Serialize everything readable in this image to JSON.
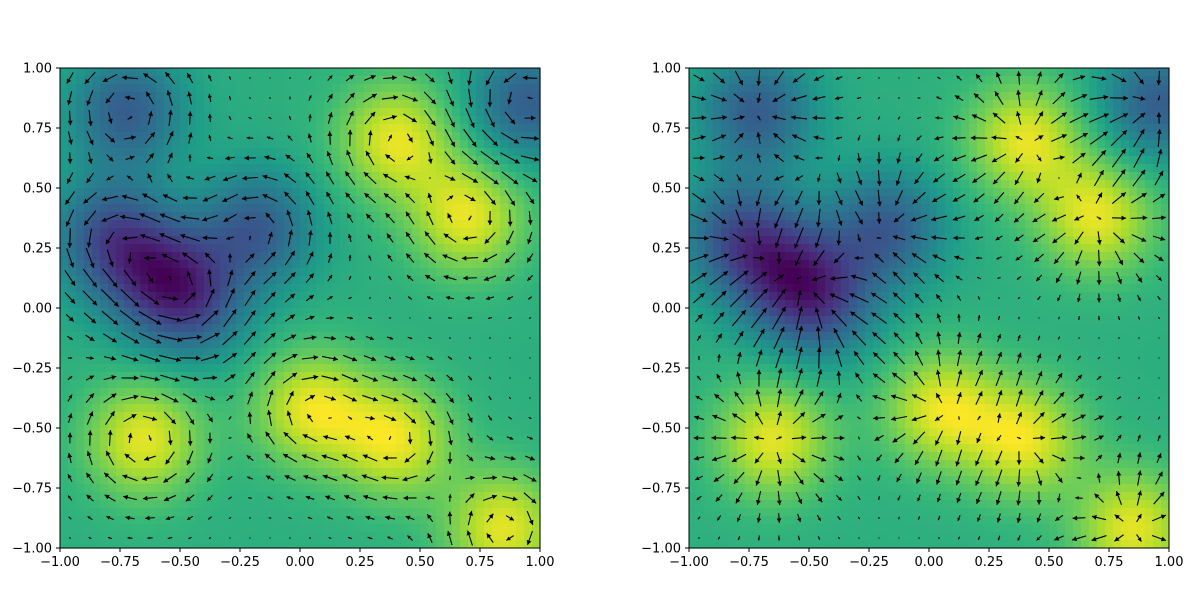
{
  "figure": {
    "background": "#ffffff"
  },
  "chart_data": [
    {
      "type": "heatmap",
      "field_kind": "rotational",
      "title": "",
      "xlabel": "",
      "ylabel": "",
      "xlim": [
        -1.0,
        1.0
      ],
      "ylim": [
        -1.0,
        1.0
      ],
      "grid": false,
      "colormap": "viridis",
      "xticks": [
        "−1.00",
        "−0.75",
        "−0.50",
        "−0.25",
        "0.00",
        "0.25",
        "0.50",
        "0.75",
        "1.00"
      ],
      "yticks": [
        "−1.00",
        "−0.75",
        "−0.50",
        "−0.25",
        "0.00",
        "0.25",
        "0.50",
        "0.75",
        "1.00"
      ],
      "scalar_field_extrema": [
        {
          "x": -0.72,
          "y": 0.82,
          "kind": "low"
        },
        {
          "x": -0.6,
          "y": 0.15,
          "kind": "low"
        },
        {
          "x": -0.45,
          "y": 0.02,
          "kind": "low"
        },
        {
          "x": -0.18,
          "y": 0.33,
          "kind": "low"
        },
        {
          "x": -0.8,
          "y": 0.3,
          "kind": "low"
        },
        {
          "x": 0.7,
          "y": 0.38,
          "kind": "high"
        },
        {
          "x": -0.65,
          "y": -0.55,
          "kind": "high"
        },
        {
          "x": 0.05,
          "y": -0.42,
          "kind": "high"
        },
        {
          "x": 0.4,
          "y": -0.55,
          "kind": "high"
        },
        {
          "x": 0.85,
          "y": -0.92,
          "kind": "high"
        },
        {
          "x": 0.4,
          "y": 0.7,
          "kind": "high"
        },
        {
          "x": 0.95,
          "y": 0.85,
          "kind": "low"
        }
      ]
    },
    {
      "type": "heatmap",
      "field_kind": "radial",
      "title": "",
      "xlabel": "",
      "ylabel": "",
      "xlim": [
        -1.0,
        1.0
      ],
      "ylim": [
        -1.0,
        1.0
      ],
      "grid": false,
      "colormap": "viridis",
      "xticks": [
        "−1.00",
        "−0.75",
        "−0.50",
        "−0.25",
        "0.00",
        "0.25",
        "0.50",
        "0.75",
        "1.00"
      ],
      "yticks": [
        "−1.00",
        "−0.75",
        "−0.50",
        "−0.25",
        "0.00",
        "0.25",
        "0.50",
        "0.75",
        "1.00"
      ],
      "scalar_field_extrema": [
        {
          "x": -0.72,
          "y": 0.82,
          "kind": "low"
        },
        {
          "x": -0.6,
          "y": 0.15,
          "kind": "low"
        },
        {
          "x": -0.45,
          "y": 0.02,
          "kind": "low"
        },
        {
          "x": -0.18,
          "y": 0.33,
          "kind": "low"
        },
        {
          "x": -0.8,
          "y": 0.3,
          "kind": "low"
        },
        {
          "x": 0.7,
          "y": 0.38,
          "kind": "high"
        },
        {
          "x": -0.65,
          "y": -0.55,
          "kind": "high"
        },
        {
          "x": 0.05,
          "y": -0.42,
          "kind": "high"
        },
        {
          "x": 0.4,
          "y": -0.55,
          "kind": "high"
        },
        {
          "x": 0.85,
          "y": -0.92,
          "kind": "high"
        },
        {
          "x": 0.4,
          "y": 0.7,
          "kind": "high"
        },
        {
          "x": 0.95,
          "y": 0.85,
          "kind": "low"
        }
      ]
    }
  ]
}
